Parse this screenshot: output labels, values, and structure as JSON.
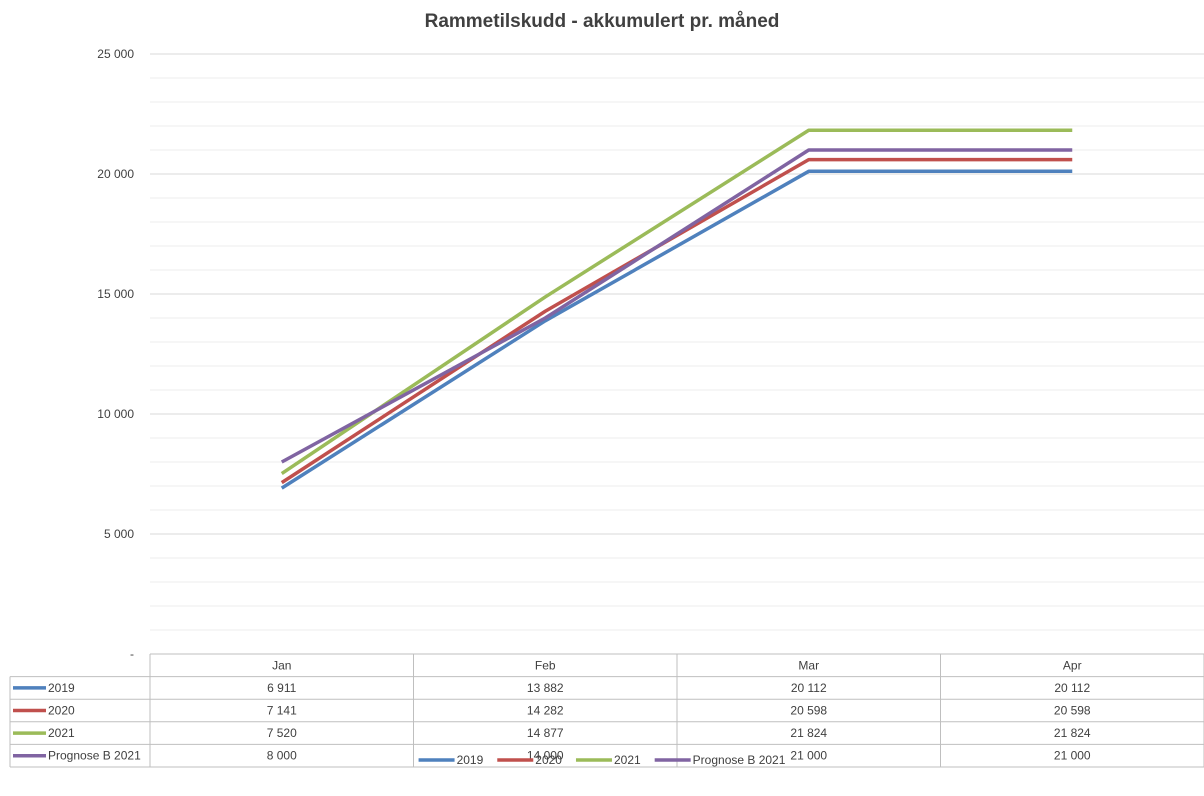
{
  "chart_data": {
    "type": "line",
    "title": "Rammetilskudd - akkumulert pr. måned",
    "categories": [
      "Jan",
      "Feb",
      "Mar",
      "Apr"
    ],
    "series": [
      {
        "name": "2019",
        "color": "#4F81BD",
        "values": [
          6911,
          13882,
          20112,
          20112
        ],
        "labels": [
          "6 911",
          "13 882",
          "20 112",
          "20 112"
        ]
      },
      {
        "name": "2020",
        "color": "#C0504D",
        "values": [
          7141,
          14282,
          20598,
          20598
        ],
        "labels": [
          "7 141",
          "14 282",
          "20 598",
          "20 598"
        ]
      },
      {
        "name": "2021",
        "color": "#9BBB59",
        "values": [
          7520,
          14877,
          21824,
          21824
        ],
        "labels": [
          "7 520",
          "14 877",
          "21 824",
          "21 824"
        ]
      },
      {
        "name": "Prognose B 2021",
        "color": "#8064A2",
        "values": [
          8000,
          14000,
          21000,
          21000
        ],
        "labels": [
          "8 000",
          "14 000",
          "21 000",
          "21 000"
        ]
      }
    ],
    "ylim": [
      0,
      25000
    ],
    "yticks": [
      0,
      5000,
      10000,
      15000,
      20000,
      25000
    ],
    "ytick_labels": [
      "-",
      "5 000",
      "10 000",
      "15 000",
      "20 000",
      "25 000"
    ],
    "grid": true,
    "data_table": true,
    "legend_position": "bottom"
  }
}
